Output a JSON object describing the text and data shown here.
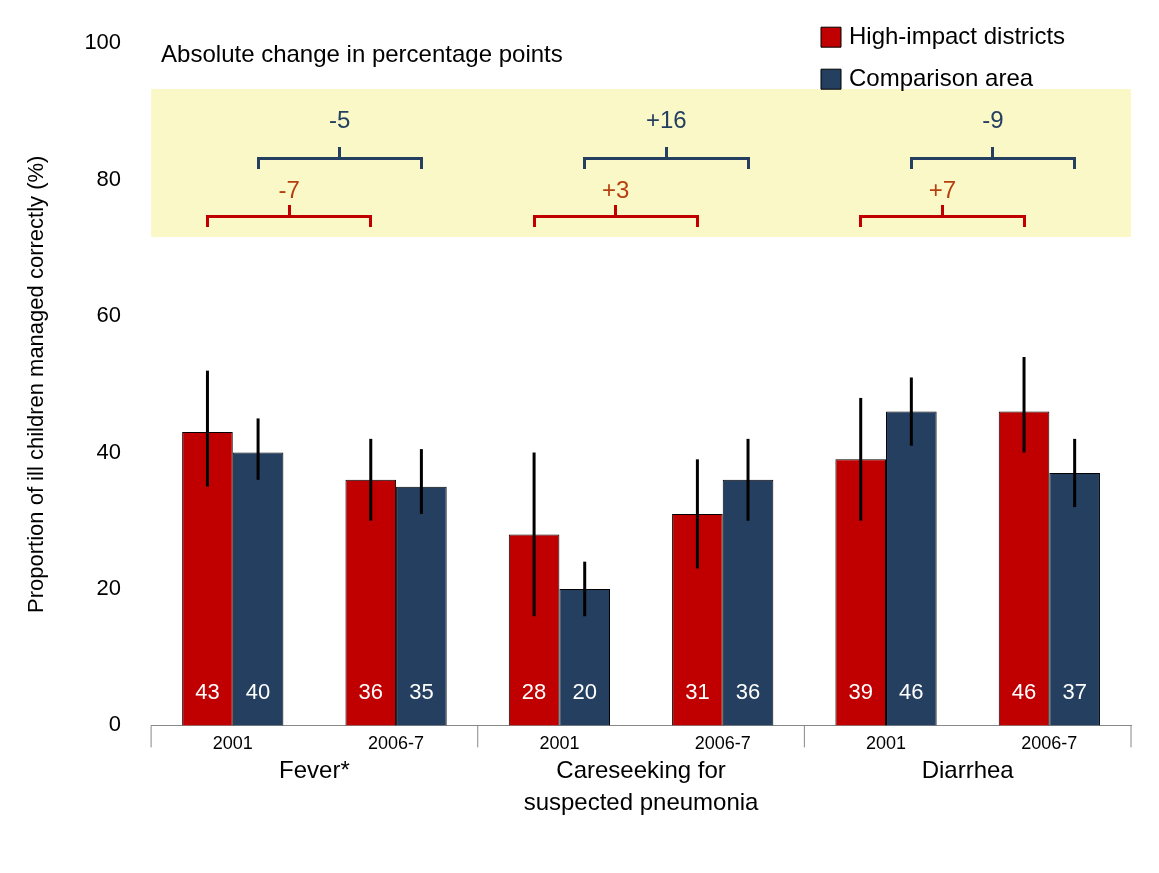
{
  "chart_data": {
    "type": "bar",
    "ylabel": "Proportion of ill children managed correctly (%)",
    "categories": [
      "2001",
      "2006-7",
      "2001",
      "2006-7",
      "2001",
      "2006-7"
    ],
    "series": [
      {
        "name": "High-impact districts",
        "color": "#c00000",
        "values": [
          43,
          36,
          28,
          31,
          39,
          46
        ],
        "errors": [
          [
            35,
            52
          ],
          [
            30,
            42
          ],
          [
            16,
            40
          ],
          [
            23,
            39
          ],
          [
            30,
            48
          ],
          [
            40,
            54
          ]
        ]
      },
      {
        "name": "Comparison area",
        "color": "#243f60",
        "values": [
          40,
          35,
          20,
          36,
          46,
          37
        ],
        "errors": [
          [
            36,
            45
          ],
          [
            31,
            40.5
          ],
          [
            16,
            24
          ],
          [
            30,
            42
          ],
          [
            41,
            51
          ],
          [
            32,
            42
          ]
        ]
      }
    ],
    "ylim": [
      0,
      100
    ],
    "yticks": [
      0,
      20,
      40,
      60,
      80,
      100
    ],
    "grid": false,
    "legend": "top right",
    "data_labels": true,
    "bands": [
      {
        "axis": "y",
        "from": 71.6,
        "to": 93.3,
        "color": "#fbf8c8"
      }
    ],
    "annotations": [
      "Absolute change in percentage points",
      "-5",
      "+16",
      "-9",
      "-7",
      "+3",
      "+7",
      "Fever*",
      "Careseeking for suspected pneumonia",
      "Diarrhea"
    ]
  }
}
